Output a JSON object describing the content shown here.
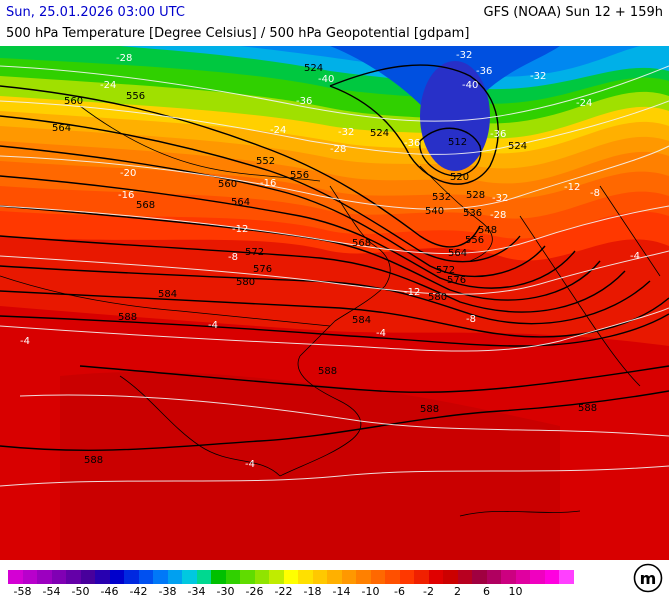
{
  "header": {
    "datetime": "Sun, 25.01.2026 03:00 UTC",
    "model": "GFS (NOAA) Sun 12 + 159h",
    "parameter": "500 hPa Temperature [Degree Celsius] / 500 hPa Geopotential [gdpam]"
  },
  "map": {
    "geopotential_labels": [
      "524",
      "560",
      "556",
      "564",
      "552",
      "556",
      "560",
      "564",
      "568",
      "572",
      "576",
      "580",
      "584",
      "588",
      "524",
      "512",
      "520",
      "528",
      "532",
      "536",
      "540",
      "548",
      "556",
      "564",
      "572",
      "576",
      "580",
      "584",
      "588",
      "588",
      "588"
    ],
    "temperature_labels": [
      "-28",
      "-24",
      "-36",
      "-40",
      "-32",
      "-36",
      "-40",
      "-36",
      "-32",
      "-24",
      "-28",
      "-32",
      "-36",
      "-28",
      "-24",
      "-20",
      "-16",
      "-12",
      "-8",
      "-4",
      "-4",
      "-4",
      "-4",
      "-12",
      "-8",
      "-16",
      "-20",
      "-24",
      "-16",
      "-12",
      "-8"
    ]
  },
  "legend": {
    "colors": [
      "#d400d4",
      "#b800cc",
      "#9c00c0",
      "#8000b4",
      "#6400a8",
      "#48009c",
      "#2800b0",
      "#0000cc",
      "#0028e0",
      "#0050f0",
      "#0078f8",
      "#00a0f0",
      "#00c8e0",
      "#00d890",
      "#00c000",
      "#30d000",
      "#60dc00",
      "#90e400",
      "#c0ec00",
      "#ffff00",
      "#ffe000",
      "#ffc800",
      "#ffb000",
      "#ff9800",
      "#ff8000",
      "#ff6800",
      "#ff5000",
      "#ff3800",
      "#f02000",
      "#e00000",
      "#cc0000",
      "#b80020",
      "#a00040",
      "#b00060",
      "#cc0080",
      "#e000a0",
      "#f000c0",
      "#ff00e0",
      "#ff40ff"
    ],
    "ticks": [
      "-58",
      "-54",
      "-50",
      "-46",
      "-42",
      "-38",
      "-34",
      "-30",
      "-26",
      "-22",
      "-18",
      "-14",
      "-10",
      "-6",
      "-2",
      "2",
      "6",
      "10"
    ]
  },
  "logo": {
    "icon": "meteologix-logo",
    "letter": "m"
  }
}
